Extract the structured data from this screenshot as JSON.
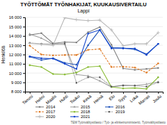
{
  "chart_data": {
    "type": "line",
    "title": "TYÖTTÖMÄT TYÖNHAKIJAT, KUUKAUSIVERTAILU",
    "subtitle": "Lappi",
    "y_label": "Henkilöä",
    "annotations": [
      "TEM Työnvälitystilasto / Työ- ja elinkeinoministeriö, Työnvälitystilasto"
    ],
    "categories": [
      "Tammi",
      "Helmi",
      "Maalis",
      "Huhti",
      "Touko",
      "Kesä",
      "Heinä",
      "Elo",
      "Syys",
      "Loka",
      "Marras",
      "Joulu"
    ],
    "series": [
      {
        "name": "2014",
        "color": "#808080",
        "line_style": "solid",
        "marker": "square",
        "values": [
          14100,
          14300,
          13200,
          13350,
          13300,
          14400,
          14950,
          13050,
          10500,
          10350,
          10450,
          10550
        ]
      },
      {
        "name": "2015",
        "color": "#a0a0a0",
        "line_style": "solid",
        "marker": "triangle",
        "values": [
          14200,
          13750,
          13100,
          13100,
          9850,
          9700,
          9150,
          8500,
          8700,
          8650,
          8800,
          9050
        ]
      },
      {
        "name": "2016",
        "color": "#2255bb",
        "line_style": "solid",
        "marker": "square",
        "values": [
          11750,
          11400,
          11600,
          11100,
          10900,
          13000,
          14650,
          12750,
          12700,
          12550,
          12050,
          13150
        ]
      },
      {
        "name": "2017",
        "color": "#e07820",
        "line_style": "dashed",
        "marker": "circle",
        "values": [
          12950,
          12000,
          11900,
          11950,
          11950,
          12500,
          12600,
          10650,
          10700,
          10600,
          10050,
          11050
        ]
      },
      {
        "name": "2018",
        "color": "#88bb33",
        "line_style": "solid",
        "marker": "circle",
        "values": [
          10850,
          10650,
          9900,
          9850,
          10050,
          10650,
          10750,
          8500,
          8350,
          8400,
          8300,
          9550
        ]
      },
      {
        "name": "2019",
        "color": "#555555",
        "line_style": "dotted",
        "marker": "square",
        "values": [
          13250,
          13150,
          13150,
          13200,
          8950,
          9550,
          9550,
          8550,
          8650,
          8650,
          8550,
          9000
        ]
      },
      {
        "name": "2020",
        "color": "#b8b8b8",
        "line_style": "solid",
        "marker": "plus",
        "values": [
          13200,
          13100,
          13000,
          15950,
          15750,
          15650,
          15700,
          14650,
          12950,
          13150,
          13150,
          14350
        ]
      },
      {
        "name": "2021",
        "color": "#1144cc",
        "line_style": "solid",
        "marker": "square",
        "values": [
          11800,
          11600,
          11550,
          11000,
          10450,
          14250,
          14650,
          12650,
          12650,
          12650,
          11950,
          13150
        ]
      }
    ],
    "ylim": [
      8000,
      16000
    ],
    "yticks": [
      {
        "value": 8000,
        "label": "8 000"
      },
      {
        "value": 9000,
        "label": "9 000"
      },
      {
        "value": 10000,
        "label": "10 000"
      },
      {
        "value": 11000,
        "label": "11 000"
      },
      {
        "value": 12000,
        "label": "12 000"
      },
      {
        "value": 13000,
        "label": "13 000"
      },
      {
        "value": 14000,
        "label": "14 000"
      },
      {
        "value": 15000,
        "label": "15 000"
      },
      {
        "value": 16000,
        "label": "16 000"
      }
    ],
    "grid": true,
    "legend": "bottom"
  }
}
